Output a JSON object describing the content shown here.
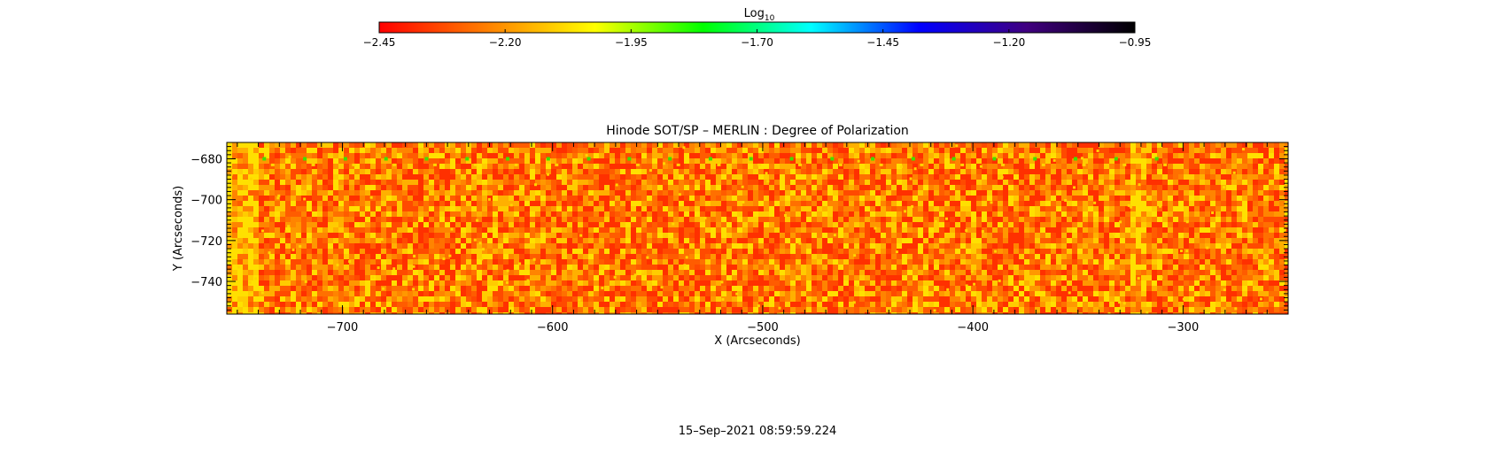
{
  "colorbar": {
    "title_main": "Log",
    "title_sub": "10",
    "ticks": [
      -2.45,
      -2.2,
      -1.95,
      -1.7,
      -1.45,
      -1.2,
      -0.95
    ],
    "tick_labels": [
      "−2.45",
      "−2.20",
      "−1.95",
      "−1.70",
      "−1.45",
      "−1.20",
      "−0.95"
    ],
    "range": [
      -2.45,
      -0.95
    ],
    "colormap": [
      "#ff0000",
      "#ff8000",
      "#ffff00",
      "#00ff00",
      "#00ffff",
      "#0000ff",
      "#400080",
      "#000000"
    ]
  },
  "chart_data": {
    "type": "heatmap",
    "title": "Hinode SOT/SP – MERLIN : Degree of Polarization",
    "xlabel": "X (Arcseconds)",
    "ylabel": "Y (Arcseconds)",
    "xlim": [
      -755,
      -250
    ],
    "ylim": [
      -756,
      -672
    ],
    "x_ticks": [
      -700,
      -600,
      -500,
      -400,
      -300
    ],
    "x_tick_labels": [
      "−700",
      "−600",
      "−500",
      "−400",
      "−300"
    ],
    "y_ticks": [
      -680,
      -700,
      -720,
      -740
    ],
    "y_tick_labels": [
      "−680",
      "−700",
      "−720",
      "−740"
    ],
    "value_range": [
      -2.45,
      -0.95
    ],
    "typical_value": -2.3,
    "dominant_colors": [
      "#ff4000",
      "#ff6a00",
      "#ff9a00",
      "#ffd400",
      "#40e000"
    ]
  },
  "footer": {
    "timestamp": "15–Sep–2021 08:59:59.224"
  }
}
